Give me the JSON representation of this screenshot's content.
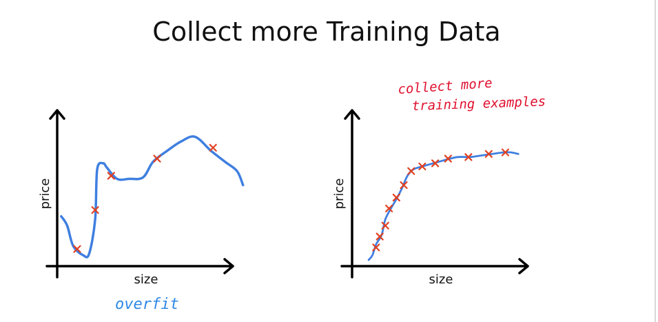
{
  "title": "Collect more Training Data",
  "colors": {
    "curve": "#3f7fe0",
    "marker": "#e04020",
    "note_blue": "#2e88e6",
    "note_red": "#e0102e",
    "axis": "#000000"
  },
  "chart_data": [
    {
      "type": "line",
      "xlabel": "size",
      "ylabel": "price",
      "annotation": "overfit",
      "points": [
        [
          0.1,
          0.11
        ],
        [
          0.19,
          0.36
        ],
        [
          0.27,
          0.58
        ],
        [
          0.5,
          0.69
        ],
        [
          0.78,
          0.76
        ]
      ],
      "curve": [
        [
          0.02,
          0.32
        ],
        [
          0.05,
          0.26
        ],
        [
          0.08,
          0.13
        ],
        [
          0.13,
          0.07
        ],
        [
          0.16,
          0.08
        ],
        [
          0.19,
          0.3
        ],
        [
          0.2,
          0.62
        ],
        [
          0.23,
          0.66
        ],
        [
          0.25,
          0.63
        ],
        [
          0.3,
          0.56
        ],
        [
          0.36,
          0.56
        ],
        [
          0.43,
          0.57
        ],
        [
          0.48,
          0.67
        ],
        [
          0.55,
          0.74
        ],
        [
          0.62,
          0.8
        ],
        [
          0.69,
          0.83
        ],
        [
          0.77,
          0.74
        ],
        [
          0.84,
          0.67
        ],
        [
          0.9,
          0.61
        ],
        [
          0.93,
          0.52
        ]
      ]
    },
    {
      "type": "line",
      "xlabel": "size",
      "ylabel": "price",
      "annotation_line1": "collect more",
      "annotation_line2": "training examples",
      "points": [
        [
          0.13,
          0.12
        ],
        [
          0.15,
          0.19
        ],
        [
          0.18,
          0.26
        ],
        [
          0.2,
          0.37
        ],
        [
          0.24,
          0.44
        ],
        [
          0.28,
          0.52
        ],
        [
          0.32,
          0.61
        ],
        [
          0.38,
          0.64
        ],
        [
          0.45,
          0.66
        ],
        [
          0.52,
          0.69
        ],
        [
          0.63,
          0.7
        ],
        [
          0.74,
          0.72
        ],
        [
          0.83,
          0.73
        ]
      ],
      "curve": [
        [
          0.09,
          0.04
        ],
        [
          0.11,
          0.07
        ],
        [
          0.13,
          0.14
        ],
        [
          0.16,
          0.2
        ],
        [
          0.18,
          0.3
        ],
        [
          0.21,
          0.37
        ],
        [
          0.24,
          0.43
        ],
        [
          0.27,
          0.5
        ],
        [
          0.3,
          0.58
        ],
        [
          0.33,
          0.62
        ],
        [
          0.38,
          0.64
        ],
        [
          0.44,
          0.66
        ],
        [
          0.5,
          0.68
        ],
        [
          0.57,
          0.7
        ],
        [
          0.64,
          0.7
        ],
        [
          0.7,
          0.71
        ],
        [
          0.76,
          0.72
        ],
        [
          0.82,
          0.73
        ],
        [
          0.86,
          0.73
        ],
        [
          0.9,
          0.72
        ]
      ]
    }
  ]
}
